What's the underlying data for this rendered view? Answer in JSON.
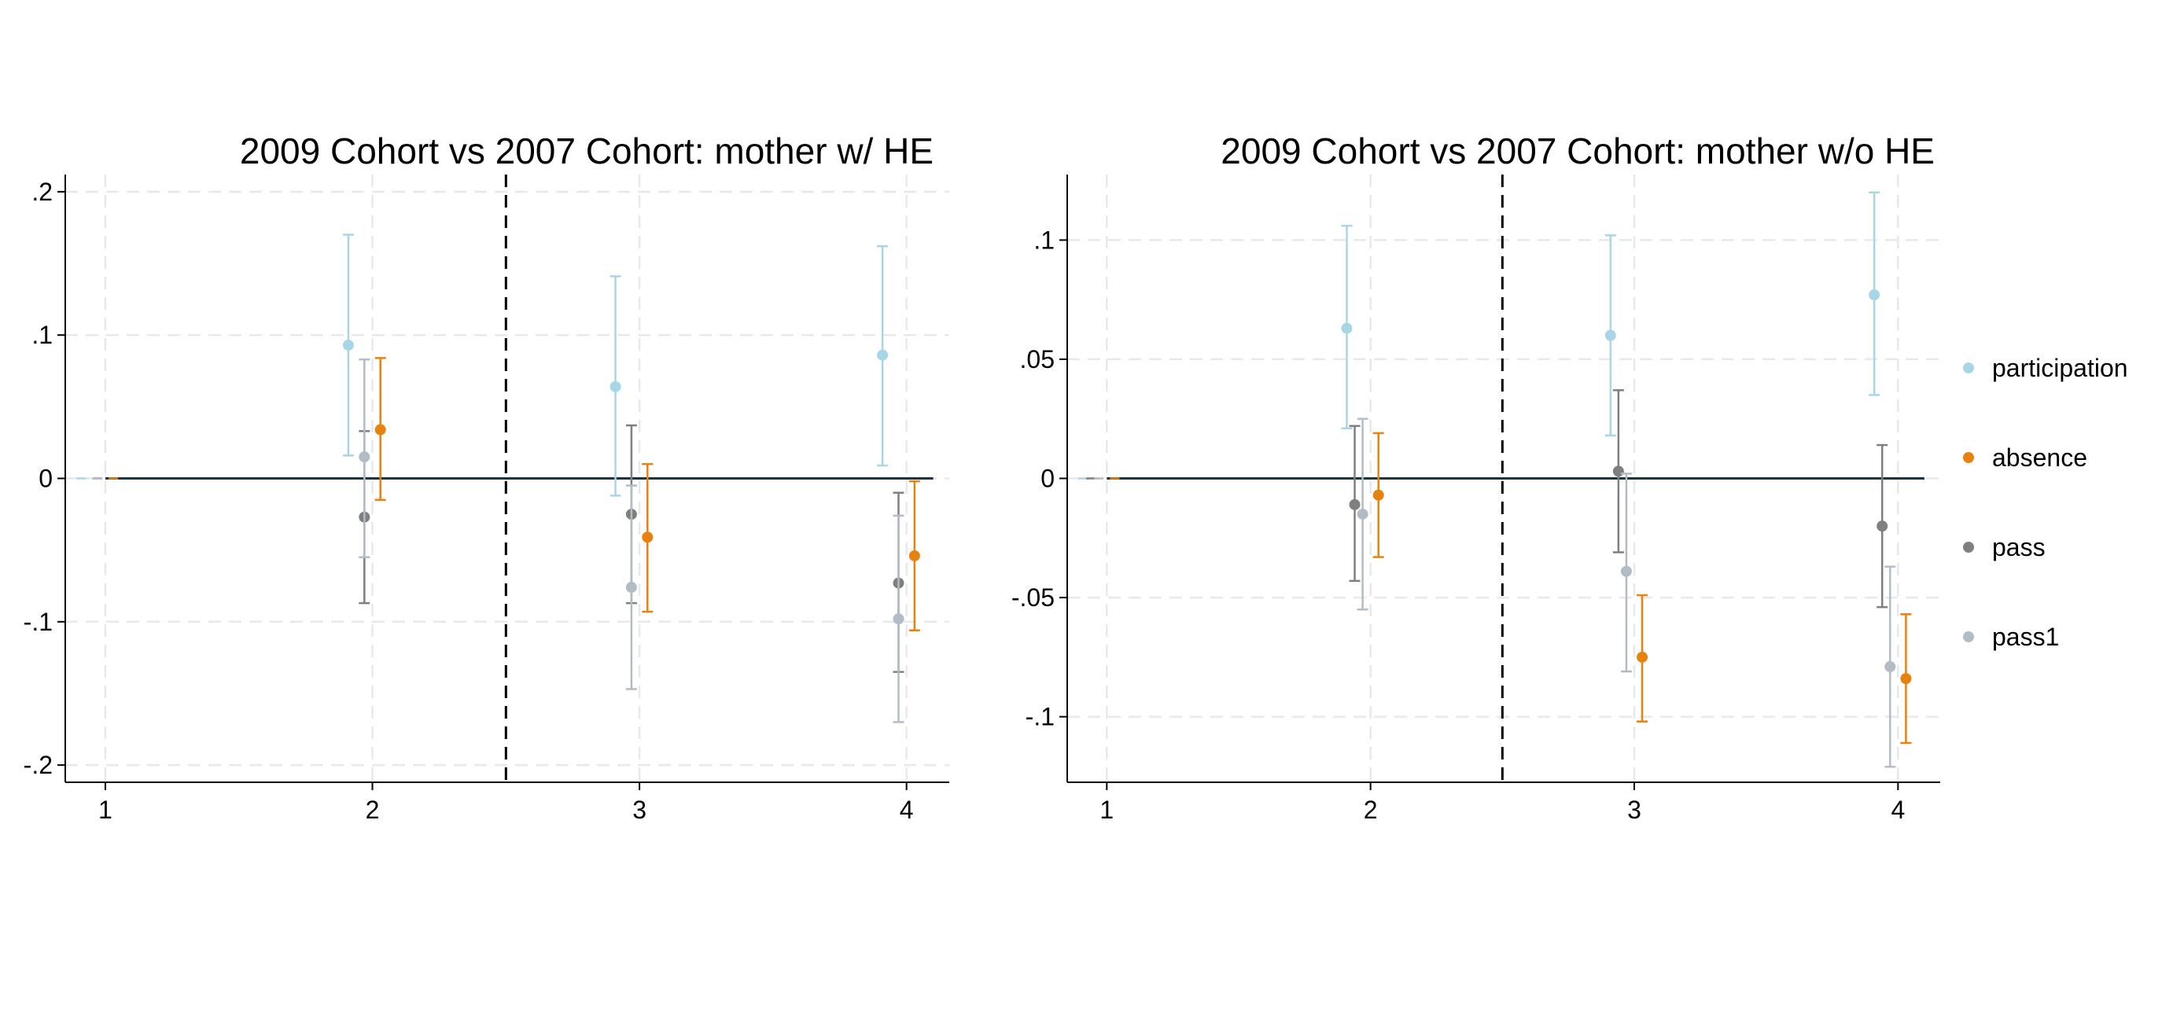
{
  "legend": [
    {
      "name": "participation",
      "color": "#a8d6e6"
    },
    {
      "name": "absence",
      "color": "#e8820e"
    },
    {
      "name": "pass",
      "color": "#7f7f7f"
    },
    {
      "name": "pass1",
      "color": "#b1bcc7"
    }
  ],
  "chart_data": [
    {
      "type": "scatter",
      "subtype": "coefficient-plot-with-confidence-intervals",
      "title": "2009 Cohort vs 2007 Cohort: mother w/ HE",
      "xlabel": "",
      "ylabel": "",
      "x_ticks": [
        1,
        2,
        3,
        4
      ],
      "y_ticks": [
        0.2,
        0.1,
        0,
        -0.1,
        -0.2
      ],
      "y_tick_labels": [
        ".2",
        ".1",
        "0",
        "-.1",
        "-.2"
      ],
      "xlim": [
        0.85,
        4.16
      ],
      "ylim": [
        -0.212,
        0.212
      ],
      "grid": true,
      "reference_line_y": 0,
      "vertical_cutoff_x": 2.5,
      "series": [
        {
          "name": "participation",
          "offset": -0.09,
          "points": [
            {
              "x": 1,
              "y": 0,
              "lo": 0,
              "hi": 0
            },
            {
              "x": 2,
              "y": 0.093,
              "lo": 0.016,
              "hi": 0.17
            },
            {
              "x": 3,
              "y": 0.064,
              "lo": -0.012,
              "hi": 0.141
            },
            {
              "x": 4,
              "y": 0.086,
              "lo": 0.009,
              "hi": 0.162
            }
          ]
        },
        {
          "name": "pass",
          "offset": -0.03,
          "points": [
            {
              "x": 1,
              "y": 0,
              "lo": 0,
              "hi": 0
            },
            {
              "x": 2,
              "y": -0.027,
              "lo": -0.087,
              "hi": 0.033
            },
            {
              "x": 3,
              "y": -0.025,
              "lo": -0.087,
              "hi": 0.037
            },
            {
              "x": 4,
              "y": -0.073,
              "lo": -0.135,
              "hi": -0.01
            }
          ]
        },
        {
          "name": "pass1",
          "offset": -0.03,
          "points": [
            {
              "x": 1,
              "y": 0,
              "lo": 0,
              "hi": 0
            },
            {
              "x": 2,
              "y": 0.015,
              "lo": -0.055,
              "hi": 0.083
            },
            {
              "x": 3,
              "y": -0.076,
              "lo": -0.147,
              "hi": -0.005
            },
            {
              "x": 4,
              "y": -0.098,
              "lo": -0.17,
              "hi": -0.026
            }
          ]
        },
        {
          "name": "absence",
          "offset": 0.03,
          "points": [
            {
              "x": 1,
              "y": 0,
              "lo": 0,
              "hi": 0
            },
            {
              "x": 2,
              "y": 0.034,
              "lo": -0.015,
              "hi": 0.084
            },
            {
              "x": 3,
              "y": -0.041,
              "lo": -0.093,
              "hi": 0.01
            },
            {
              "x": 4,
              "y": -0.054,
              "lo": -0.106,
              "hi": -0.002
            }
          ]
        }
      ]
    },
    {
      "type": "scatter",
      "subtype": "coefficient-plot-with-confidence-intervals",
      "title": "2009 Cohort vs 2007 Cohort: mother w/o HE",
      "xlabel": "",
      "ylabel": "",
      "x_ticks": [
        1,
        2,
        3,
        4
      ],
      "y_ticks": [
        0.1,
        0.05,
        0,
        -0.05,
        -0.1
      ],
      "y_tick_labels": [
        ".1",
        ".05",
        "0",
        "-.05",
        "-.1"
      ],
      "xlim": [
        0.85,
        4.16
      ],
      "ylim": [
        -0.1275,
        0.1275
      ],
      "grid": true,
      "reference_line_y": 0,
      "vertical_cutoff_x": 2.5,
      "series": [
        {
          "name": "participation",
          "offset": -0.09,
          "points": [
            {
              "x": 1,
              "y": 0,
              "lo": 0,
              "hi": 0
            },
            {
              "x": 2,
              "y": 0.063,
              "lo": 0.021,
              "hi": 0.106
            },
            {
              "x": 3,
              "y": 0.06,
              "lo": 0.018,
              "hi": 0.102
            },
            {
              "x": 4,
              "y": 0.077,
              "lo": 0.035,
              "hi": 0.12
            }
          ]
        },
        {
          "name": "pass",
          "offset": -0.06,
          "points": [
            {
              "x": 1,
              "y": 0,
              "lo": 0,
              "hi": 0
            },
            {
              "x": 2,
              "y": -0.011,
              "lo": -0.043,
              "hi": 0.022
            },
            {
              "x": 3,
              "y": 0.003,
              "lo": -0.031,
              "hi": 0.037
            },
            {
              "x": 4,
              "y": -0.02,
              "lo": -0.054,
              "hi": 0.014
            }
          ]
        },
        {
          "name": "pass1",
          "offset": -0.03,
          "points": [
            {
              "x": 1,
              "y": 0,
              "lo": 0,
              "hi": 0
            },
            {
              "x": 2,
              "y": -0.015,
              "lo": -0.055,
              "hi": 0.025
            },
            {
              "x": 3,
              "y": -0.039,
              "lo": -0.081,
              "hi": 0.002
            },
            {
              "x": 4,
              "y": -0.079,
              "lo": -0.121,
              "hi": -0.037
            }
          ]
        },
        {
          "name": "absence",
          "offset": 0.03,
          "points": [
            {
              "x": 1,
              "y": 0,
              "lo": 0,
              "hi": 0
            },
            {
              "x": 2,
              "y": -0.007,
              "lo": -0.033,
              "hi": 0.019
            },
            {
              "x": 3,
              "y": -0.075,
              "lo": -0.102,
              "hi": -0.049
            },
            {
              "x": 4,
              "y": -0.084,
              "lo": -0.111,
              "hi": -0.057
            }
          ]
        }
      ]
    }
  ]
}
